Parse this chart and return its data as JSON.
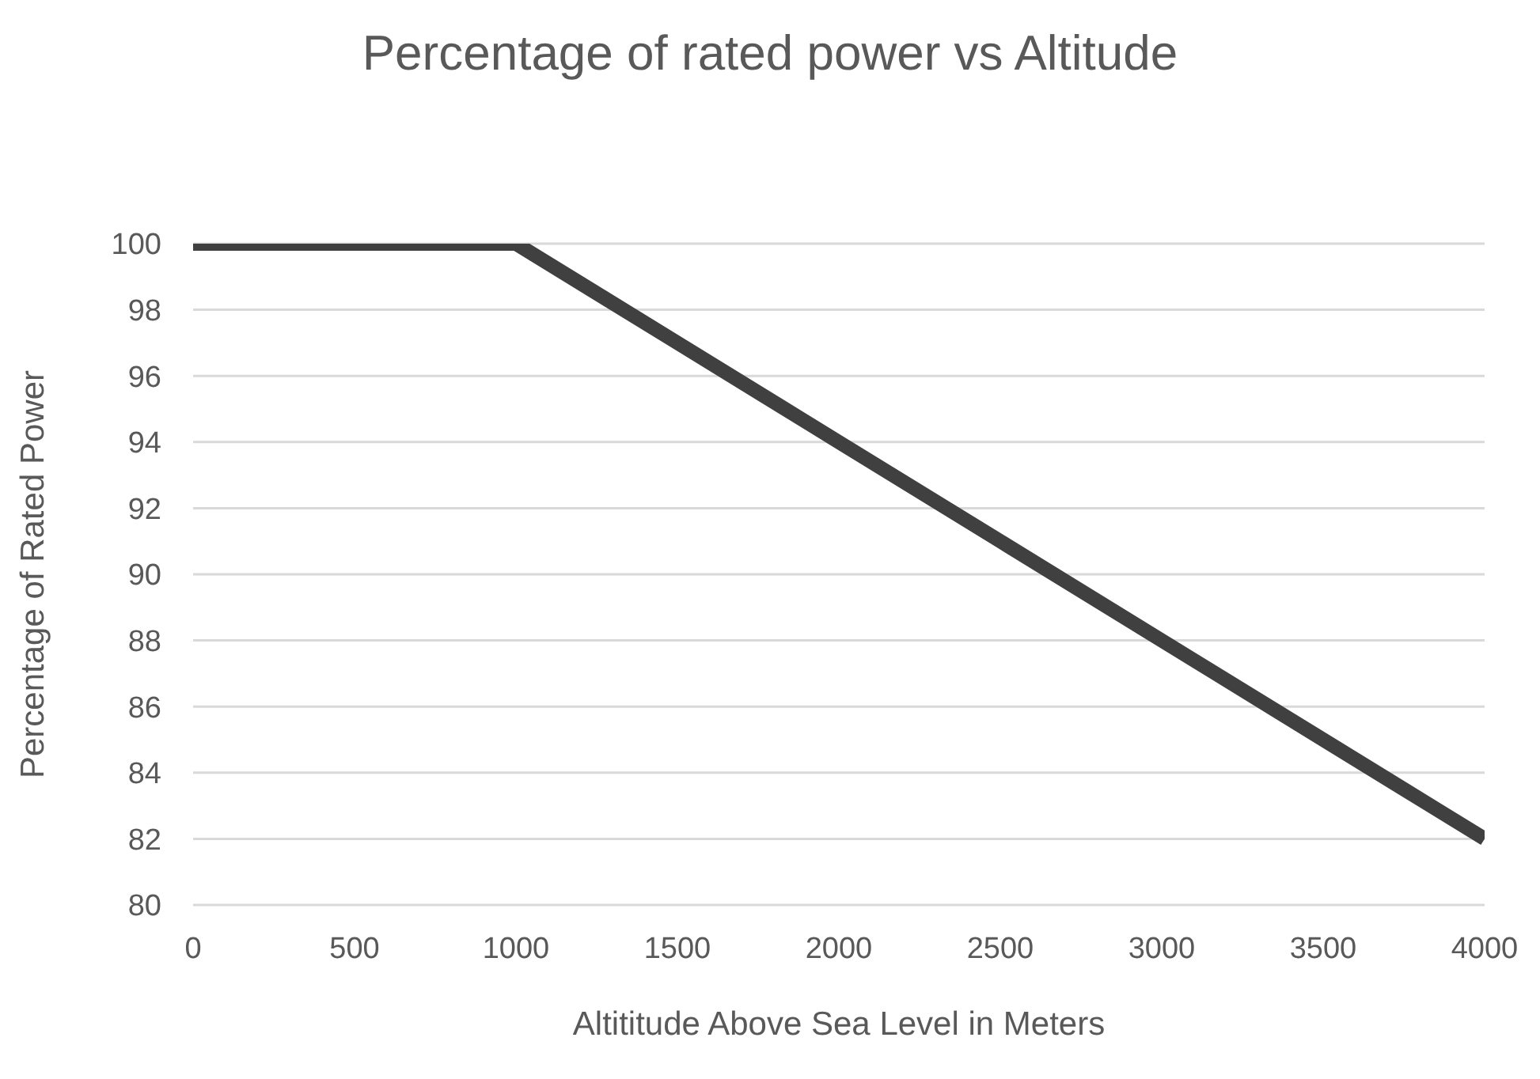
{
  "chart_data": {
    "type": "line",
    "title": "Percentage of rated power vs Altitude",
    "xlabel": "Altititude Above Sea Level in Meters",
    "ylabel": "Percentage of Rated Power",
    "x": [
      0,
      500,
      1000,
      1500,
      2000,
      2500,
      3000,
      3500,
      4000
    ],
    "series": [
      {
        "color": "#404040",
        "values": [
          100,
          100,
          100,
          97,
          94,
          91,
          88,
          85,
          82
        ]
      }
    ],
    "xlim": [
      0,
      4000
    ],
    "xticks": [
      0,
      500,
      1000,
      1500,
      2000,
      2500,
      3000,
      3500,
      4000
    ],
    "ylim": [
      80,
      100
    ],
    "yticks": [
      80,
      82,
      84,
      86,
      88,
      90,
      92,
      94,
      96,
      98,
      100
    ],
    "grid": "y",
    "line_style": "solid"
  }
}
